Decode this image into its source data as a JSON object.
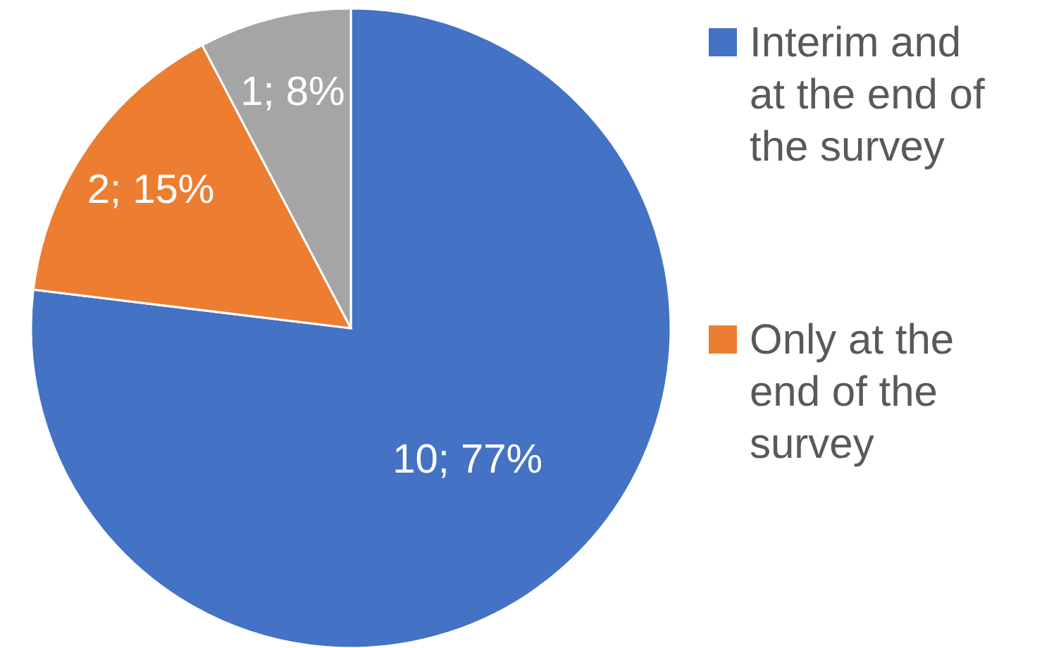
{
  "chart_data": {
    "type": "pie",
    "categories": [
      "Interim and at the end of the survey",
      "Only at the end of the survey",
      null
    ],
    "values": [
      10,
      2,
      1
    ],
    "colors": [
      "#4472c4",
      "#ed7d31",
      "#a5a5a5"
    ],
    "value_labels": [
      "10; 77%",
      "2; 15%",
      "1; 8%"
    ],
    "legend": "right"
  }
}
